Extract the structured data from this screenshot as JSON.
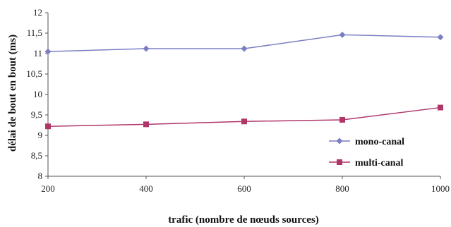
{
  "chart_data": {
    "type": "line",
    "title": "",
    "xlabel": "trafic (nombre de nœuds sources)",
    "ylabel": "délai de bout en bout (ms)",
    "x": [
      200,
      400,
      600,
      800,
      1000
    ],
    "xlim": [
      200,
      1000
    ],
    "ylim": [
      8,
      12
    ],
    "x_ticks": [
      "200",
      "400",
      "600",
      "800",
      "1000"
    ],
    "y_ticks": [
      "8",
      "8,5",
      "9",
      "9,5",
      "10",
      "10,5",
      "11",
      "11,5",
      "12"
    ],
    "grid": false,
    "legend_position": "bottom-right",
    "series": [
      {
        "name": "mono-canal",
        "values": [
          11.05,
          11.12,
          11.12,
          11.46,
          11.4
        ],
        "color": "#7b7fc1",
        "marker": "diamond"
      },
      {
        "name": "multi-canal",
        "values": [
          9.22,
          9.27,
          9.34,
          9.38,
          9.68
        ],
        "color": "#b0366a",
        "marker": "square"
      }
    ]
  }
}
